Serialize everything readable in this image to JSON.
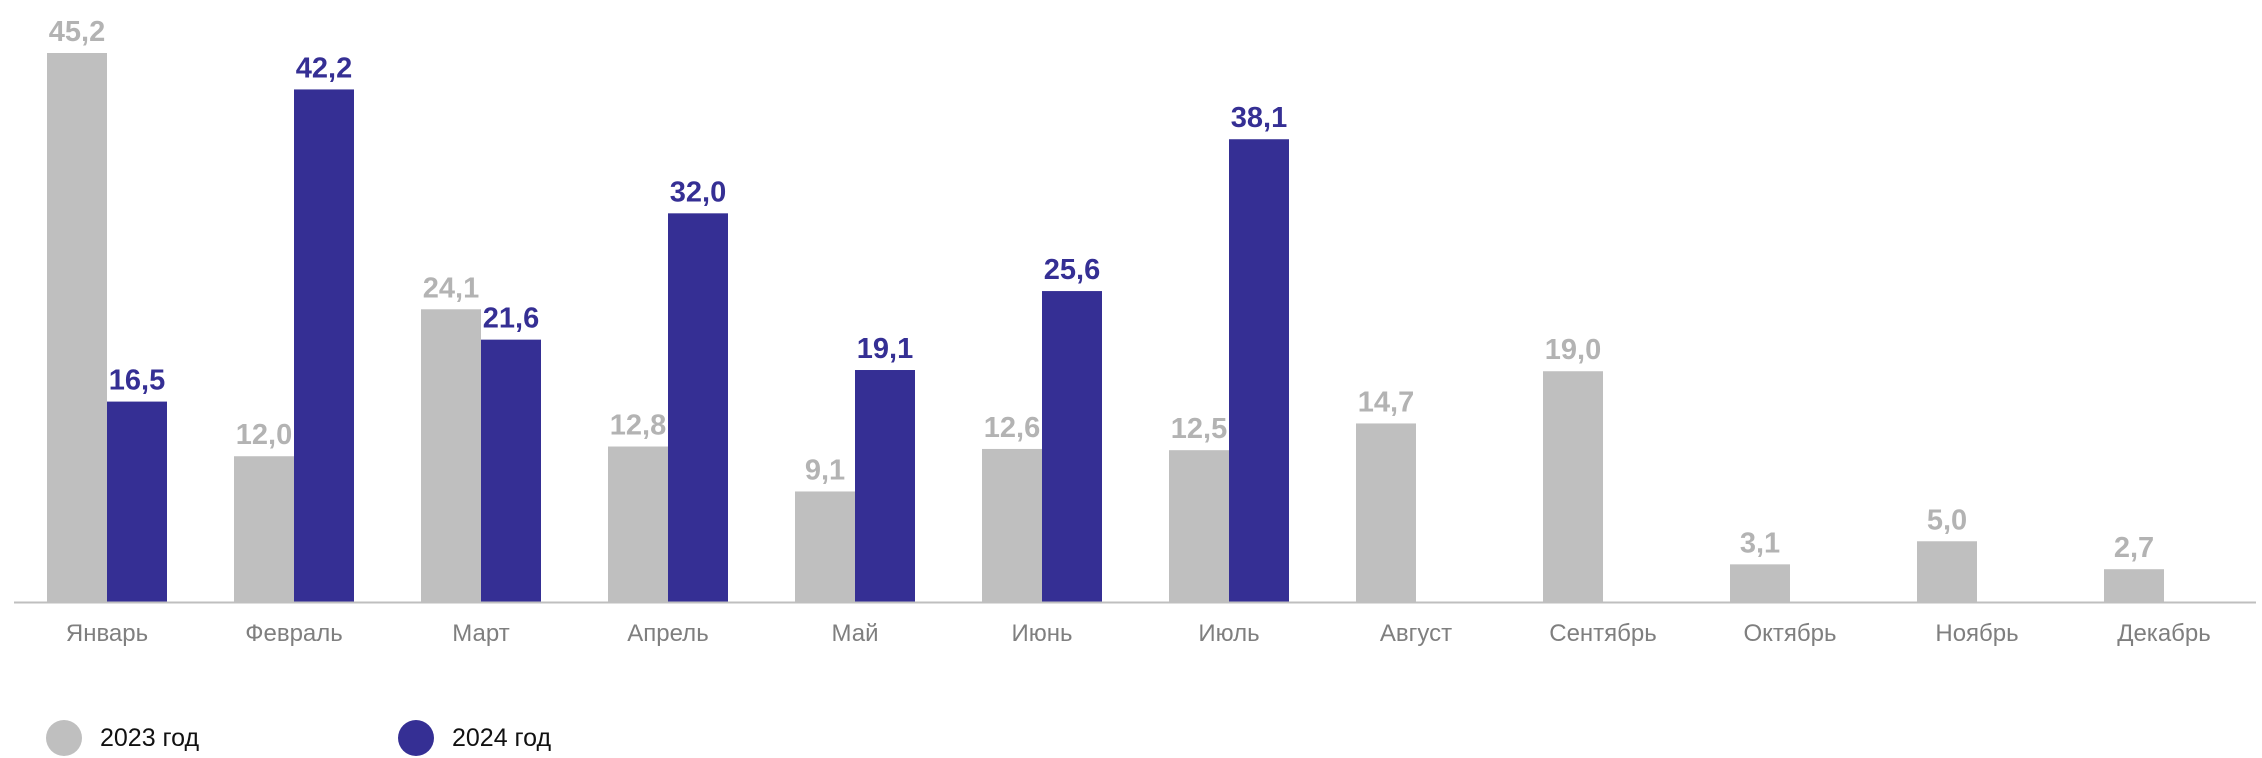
{
  "chart_data": {
    "type": "bar",
    "categories": [
      "Январь",
      "Февраль",
      "Март",
      "Апрель",
      "Май",
      "Июнь",
      "Июль",
      "Август",
      "Сентябрь",
      "Октябрь",
      "Ноябрь",
      "Декабрь"
    ],
    "series": [
      {
        "name": "2023 год",
        "color": "#bfbfbf",
        "label_color": "#b3b3b3",
        "values": [
          45.2,
          12.0,
          24.1,
          12.8,
          9.1,
          12.6,
          12.5,
          14.7,
          19.0,
          3.1,
          5.0,
          2.7
        ],
        "labels": [
          "45,2",
          "12,0",
          "24,1",
          "12,8",
          "9,1",
          "12,6",
          "12,5",
          "14,7",
          "19,0",
          "3,1",
          "5,0",
          "2,7"
        ]
      },
      {
        "name": "2024 год",
        "color": "#352f94",
        "label_color": "#352f94",
        "values": [
          16.5,
          42.2,
          21.6,
          32.0,
          19.1,
          25.6,
          38.1,
          null,
          null,
          null,
          null,
          null
        ],
        "labels": [
          "16,5",
          "42,2",
          "21,6",
          "32,0",
          "19,1",
          "25,6",
          "38,1",
          "",
          "",
          "",
          "",
          ""
        ]
      }
    ],
    "ylim": [
      0,
      45.2
    ],
    "grid": false,
    "legend": "bottom-left"
  }
}
